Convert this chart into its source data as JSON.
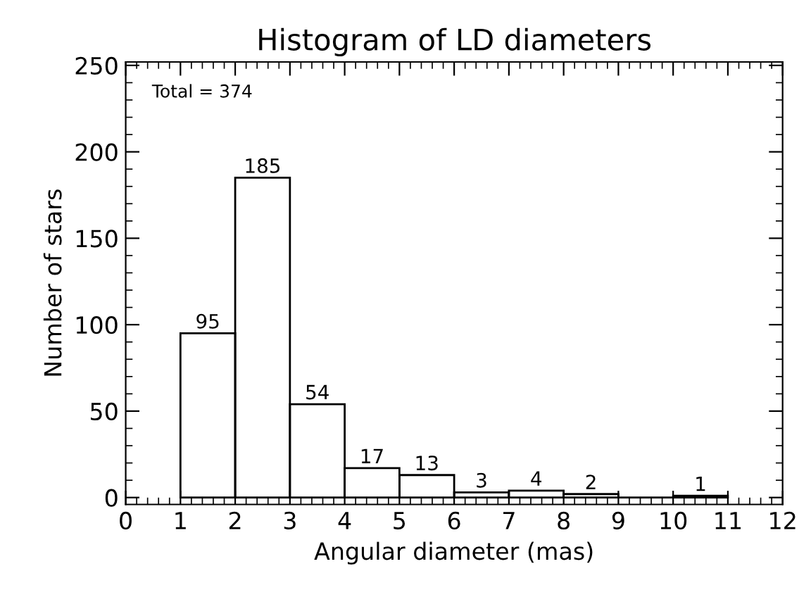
{
  "chart_data": {
    "type": "histogram",
    "title": "Histogram of LD diameters",
    "xlabel": "Angular diameter (mas)",
    "ylabel": "Number of stars",
    "bins": [
      1,
      2,
      3,
      4,
      5,
      6,
      7,
      8,
      9,
      10,
      11
    ],
    "values": [
      95,
      185,
      54,
      17,
      13,
      3,
      4,
      2,
      0,
      1
    ],
    "value_labels": [
      "95",
      "185",
      "54",
      "17",
      "13",
      "3",
      "4",
      "2",
      null,
      "1"
    ],
    "color": "#000000",
    "xlim": [
      0,
      12
    ],
    "xticks": [
      0,
      1,
      2,
      3,
      4,
      5,
      6,
      7,
      8,
      9,
      10,
      11,
      12
    ],
    "ylim": [
      -4,
      252
    ],
    "yticks": [
      0,
      50,
      100,
      150,
      200,
      250
    ],
    "annotations": [
      "Total = 374"
    ],
    "grid": false,
    "legend": false
  }
}
